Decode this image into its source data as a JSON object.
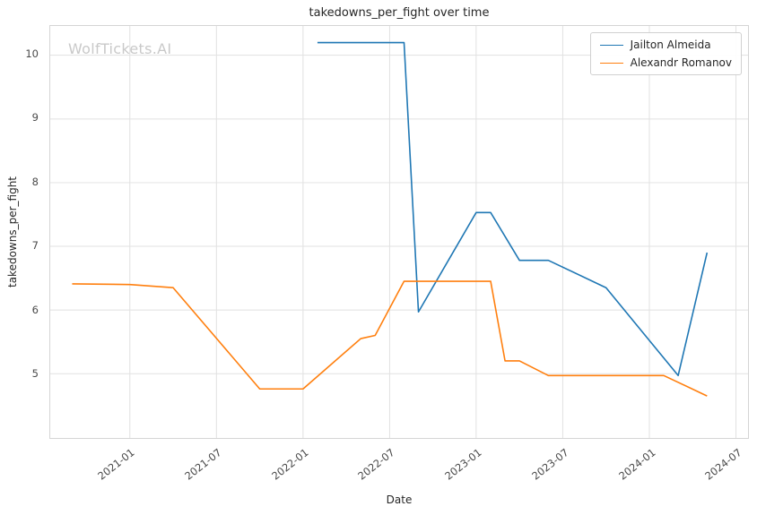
{
  "chart_data": {
    "type": "line",
    "title": "takedowns_per_fight over time",
    "xlabel": "Date",
    "ylabel": "takedowns_per_fight",
    "watermark": "WolfTickets.AI",
    "grid": true,
    "legend_position": "upper right",
    "x_ticks": [
      "2021-01",
      "2021-07",
      "2022-01",
      "2022-07",
      "2023-01",
      "2023-07",
      "2024-01",
      "2024-07"
    ],
    "y_ticks": [
      5,
      6,
      7,
      8,
      9,
      10
    ],
    "xlim_decimal_years": [
      2020.54,
      2024.57
    ],
    "ylim": [
      3.99,
      10.46
    ],
    "colors": {
      "blue": "#1f77b4",
      "orange": "#ff7f0e",
      "gridline": "#e1e1e1",
      "watermark": "#c9c9c9"
    },
    "series": [
      {
        "name": "Jailton Almeida",
        "color": "#1f77b4",
        "x": [
          "2022-02",
          "2022-08",
          "2022-09",
          "2023-01",
          "2023-02",
          "2023-04",
          "2023-06",
          "2023-10",
          "2024-03",
          "2024-05"
        ],
        "y": [
          10.2,
          10.2,
          5.97,
          7.53,
          7.53,
          6.78,
          6.78,
          6.35,
          4.97,
          6.9
        ]
      },
      {
        "name": "Alexandr Romanov",
        "color": "#ff7f0e",
        "x": [
          "2020-09",
          "2021-01",
          "2021-04",
          "2021-10",
          "2022-01",
          "2022-05",
          "2022-06",
          "2022-08",
          "2023-02",
          "2023-03",
          "2023-04",
          "2023-06",
          "2024-02",
          "2024-05"
        ],
        "y": [
          6.41,
          6.4,
          6.35,
          4.76,
          4.76,
          5.55,
          5.6,
          6.45,
          6.45,
          5.2,
          5.2,
          4.97,
          4.97,
          4.65
        ]
      }
    ]
  }
}
